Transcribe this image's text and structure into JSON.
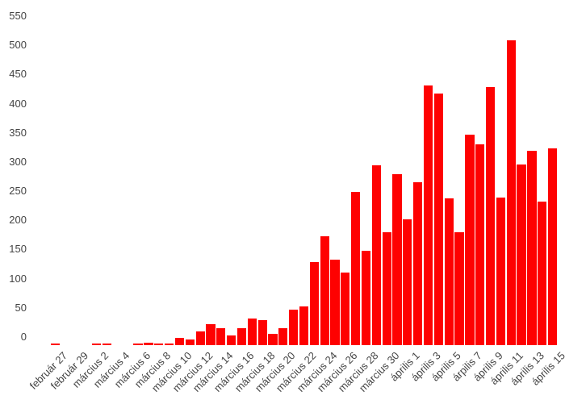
{
  "chart_data": {
    "type": "bar",
    "title": "",
    "categories": [
      "február 27",
      "február 28",
      "február 29",
      "március 1",
      "március 2",
      "március 3",
      "március 4",
      "március 5",
      "március 6",
      "március 7",
      "március 8",
      "március 9",
      "március 10",
      "március 11",
      "március 12",
      "március 13",
      "március 14",
      "március 15",
      "március 16",
      "március 17",
      "március 18",
      "március 19",
      "március 20",
      "március 21",
      "március 22",
      "március 23",
      "március 24",
      "március 25",
      "március 26",
      "március 27",
      "március 28",
      "március 29",
      "március 30",
      "március 31",
      "április 1",
      "április 2",
      "április 3",
      "április 4",
      "április 5",
      "április 6",
      "április 7",
      "április 8",
      "április 9",
      "április 10",
      "április 11",
      "április 12",
      "április 13",
      "április 14",
      "április 15"
    ],
    "values": [
      2,
      0,
      0,
      0,
      2,
      1,
      0,
      0,
      3,
      4,
      3,
      2,
      13,
      10,
      23,
      36,
      29,
      16,
      29,
      45,
      43,
      19,
      29,
      61,
      66,
      143,
      186,
      147,
      124,
      263,
      161,
      308,
      193,
      293,
      215,
      279,
      445,
      431,
      251,
      193,
      360,
      344,
      442,
      253,
      523,
      310,
      333,
      246,
      337
    ],
    "x_axis": {
      "tick_every": 2,
      "label_rotation_deg": 45,
      "tick_labels": [
        "február 27",
        "február 29",
        "március 2",
        "március 4",
        "március 6",
        "március 8",
        "március 10",
        "március 12",
        "március 14",
        "március 16",
        "március 18",
        "március 20",
        "március 22",
        "március 24",
        "március 26",
        "március 28",
        "március 30",
        "április 1",
        "április 3",
        "április 5",
        "árpilis 7",
        "április 9",
        "április 11",
        "április 13",
        "április 15"
      ]
    },
    "y_axis": {
      "min": 0,
      "max": 550,
      "ticks": [
        0,
        50,
        100,
        150,
        200,
        250,
        300,
        350,
        400,
        450,
        500,
        550
      ]
    },
    "colors": {
      "bar": "#fe0101",
      "axis_text": "#444444",
      "background": "#ffffff"
    },
    "grid": false,
    "legend": "none"
  }
}
